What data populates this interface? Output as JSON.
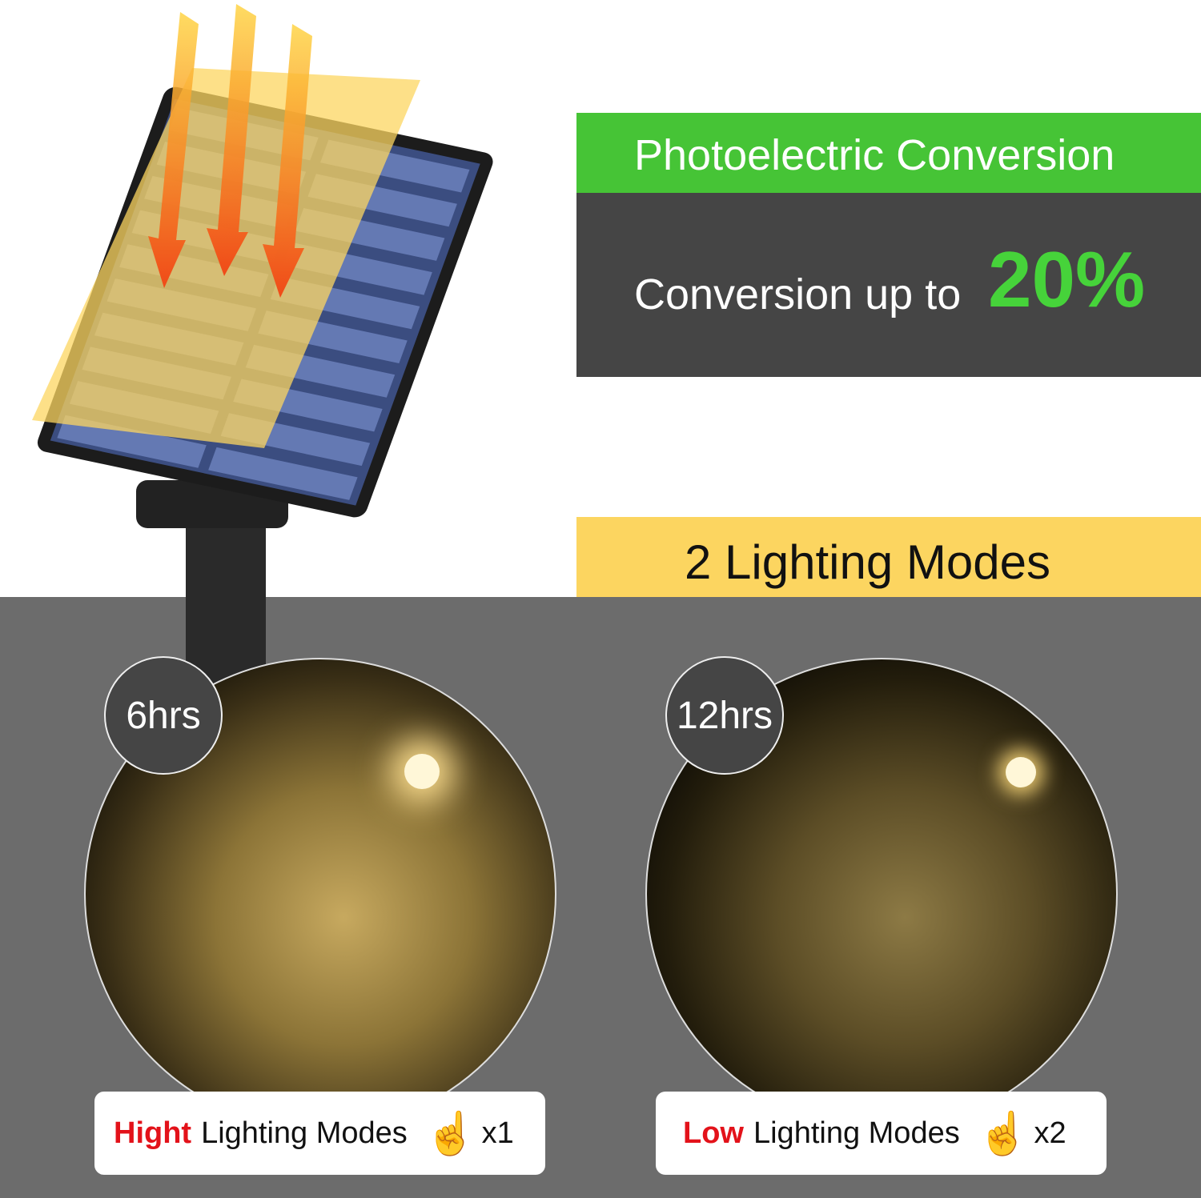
{
  "conversion": {
    "heading": "Photoelectric Conversion",
    "text": "Conversion up to",
    "value": "20%"
  },
  "modes": {
    "heading": "2 Lighting Modes",
    "items": [
      {
        "hours": "6hrs",
        "level": "Hight",
        "label": "Lighting Modes",
        "presses": "x1",
        "icon": "hand-tap-icon"
      },
      {
        "hours": "12hrs",
        "level": "Low",
        "label": "Lighting Modes",
        "presses": "x2",
        "icon": "hand-tap-icon"
      }
    ]
  },
  "colors": {
    "green": "#46c436",
    "dark": "#454545",
    "yellow": "#fcd560",
    "red": "#e3121a",
    "gray": "#6c6c6c"
  }
}
